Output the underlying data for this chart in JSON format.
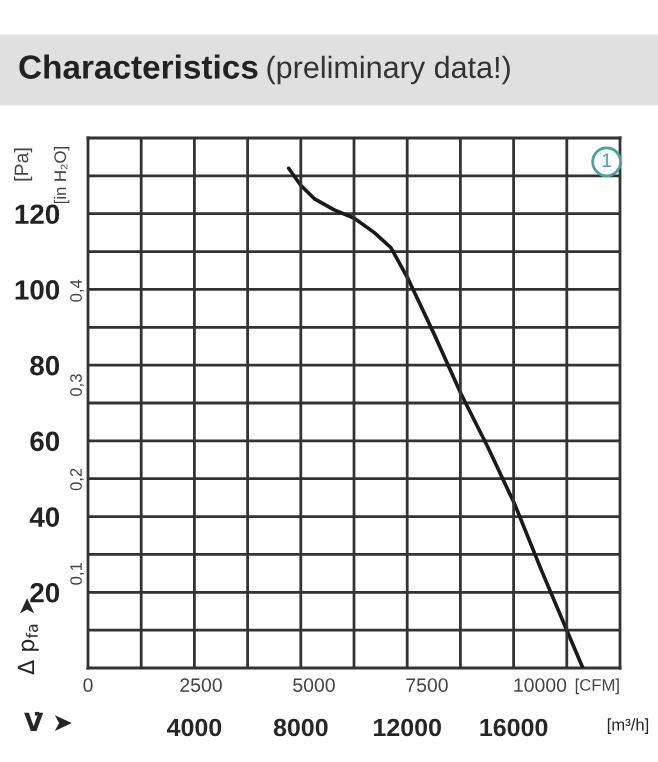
{
  "chart_data": {
    "type": "line",
    "title": "Characteristics",
    "subtitle": "(preliminary data!)",
    "xlabel": "[CFM]",
    "ylabel": "[Pa]",
    "y2label": "[in H₂O]",
    "x2label": "[m³/h]",
    "x": [
      4440,
      4707,
      5003,
      5448,
      5892,
      6336,
      6704,
      7074,
      7667,
      8258,
      8849,
      9441,
      10034,
      10625,
      10950
    ],
    "series": [
      {
        "color": "#1a1a1a",
        "values": [
          132,
          127.5,
          124,
          121,
          118.8,
          115,
          111,
          103,
          88,
          72.3,
          58.3,
          43.3,
          25.8,
          9.1,
          0
        ]
      }
    ],
    "xlim": [
      0,
      11772
    ],
    "xticks": [
      0,
      2500,
      5000,
      7500,
      10000
    ],
    "x2lim": [
      0,
      20000
    ],
    "x2ticks": [
      {
        "value": 2000,
        "label": null
      },
      4000,
      {
        "value": 6000,
        "label": null
      },
      8000,
      {
        "value": 10000,
        "label": null
      },
      12000,
      {
        "value": 14000,
        "label": null
      },
      16000,
      {
        "value": 18000,
        "label": null
      }
    ],
    "ylim": [
      0,
      140
    ],
    "yticks": [
      {
        "value": 10,
        "label": null
      },
      20,
      {
        "value": 30,
        "label": null
      },
      40,
      {
        "value": 50,
        "label": null
      },
      60,
      {
        "value": 70,
        "label": null
      },
      80,
      {
        "value": 90,
        "label": null
      },
      100,
      {
        "value": 110,
        "label": null
      },
      120,
      {
        "value": 130,
        "label": null
      }
    ],
    "y2lim": [
      0,
      0.562
    ],
    "y2ticks": [
      {
        "value": 0.1,
        "label": "0,1"
      },
      {
        "value": 0.2,
        "label": "0,2"
      },
      {
        "value": 0.3,
        "label": "0,3"
      },
      {
        "value": 0.4,
        "label": "0,4"
      }
    ],
    "annotations": [
      "1",
      "V̇ ➤",
      "Δ p$_{fa}$ ➤"
    ],
    "grid": true,
    "line_style": "solid",
    "marker": "none",
    "legend": false
  }
}
